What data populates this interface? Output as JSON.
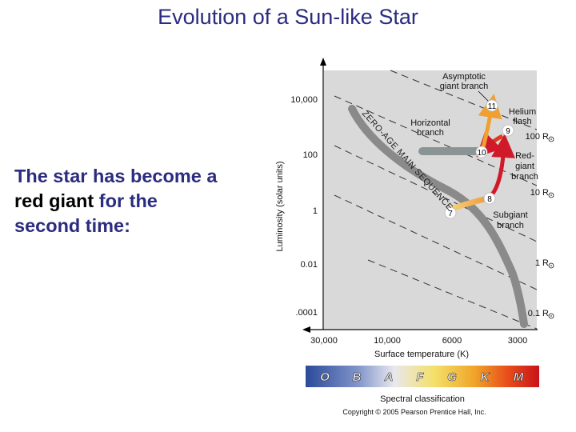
{
  "slide": {
    "title": "Evolution of a Sun-like Star",
    "body": {
      "line1": "The star has become a",
      "line2_emphasis": "red giant",
      "line2_rest": " for the",
      "line3": "second time:"
    }
  },
  "diagram": {
    "y_axis_label": "Luminosity (solar units)",
    "y_ticks": [
      "10,000",
      "100",
      "1",
      "0.01",
      ".0001"
    ],
    "x_axis_label": "Surface temperature (K)",
    "x_ticks": [
      "30,000",
      "10,000",
      "6000",
      "3000"
    ],
    "zams_label": "ZERO-AGE MAIN SEQUENCE",
    "stage_labels": {
      "asymptotic": [
        "Asymptotic",
        "giant branch"
      ],
      "horizontal": [
        "Horizontal",
        "branch"
      ],
      "helium": [
        "Helium",
        "flash"
      ],
      "red_giant": [
        "Red-",
        "giant",
        "branch"
      ],
      "subgiant": [
        "Subgiant",
        "branch"
      ]
    },
    "points": [
      "7",
      "8",
      "9",
      "10",
      "11"
    ],
    "radius_labels": [
      "100 R",
      "10 R",
      "1 R",
      "0.1 R"
    ],
    "spectral_letters": [
      "O",
      "B",
      "A",
      "F",
      "G",
      "K",
      "M"
    ],
    "spectral_caption": "Spectral classification",
    "copyright": "Copyright © 2005 Pearson Prentice Hall, Inc."
  }
}
